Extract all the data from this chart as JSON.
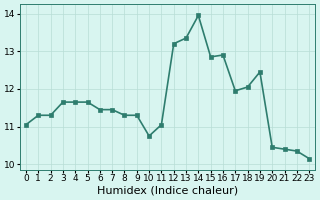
{
  "x": [
    0,
    1,
    2,
    3,
    4,
    5,
    6,
    7,
    8,
    9,
    10,
    11,
    12,
    13,
    14,
    15,
    16,
    17,
    18,
    19,
    20,
    21,
    22,
    23
  ],
  "y": [
    11.05,
    11.3,
    11.3,
    11.65,
    11.65,
    11.65,
    11.45,
    11.45,
    11.3,
    11.3,
    10.75,
    11.05,
    13.2,
    13.35,
    13.95,
    12.85,
    12.9,
    11.95,
    12.05,
    12.45,
    10.45,
    10.4,
    10.35,
    10.15
  ],
  "line_color": "#2e7d6e",
  "marker_color": "#2e7d6e",
  "bg_color": "#d8f5f0",
  "grid_color": "#b8ddd6",
  "xlabel": "Humidex (Indice chaleur)",
  "xlim": [
    -0.5,
    23.5
  ],
  "ylim": [
    9.85,
    14.25
  ],
  "yticks": [
    10,
    11,
    12,
    13,
    14
  ],
  "xticks": [
    0,
    1,
    2,
    3,
    4,
    5,
    6,
    7,
    8,
    9,
    10,
    11,
    12,
    13,
    14,
    15,
    16,
    17,
    18,
    19,
    20,
    21,
    22,
    23
  ],
  "tick_fontsize": 6.5,
  "xlabel_fontsize": 8,
  "marker_size": 2.8,
  "line_width": 1.2
}
